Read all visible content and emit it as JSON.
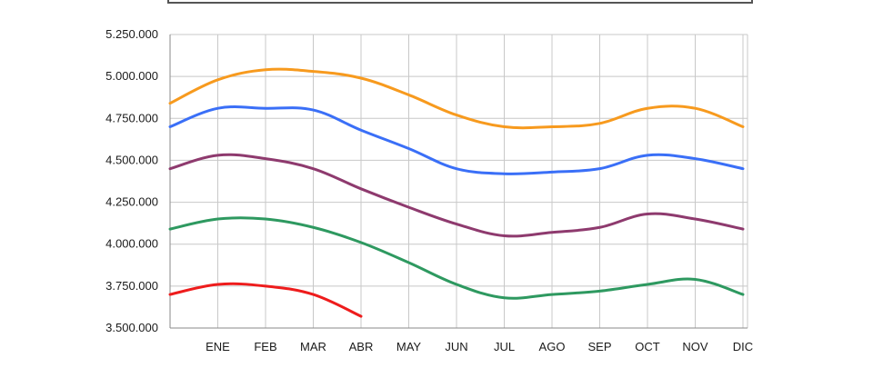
{
  "chart_data": {
    "type": "line",
    "title": "",
    "xlabel": "",
    "ylabel": "",
    "categories": [
      "",
      "ENE",
      "FEB",
      "MAR",
      "ABR",
      "MAY",
      "JUN",
      "JUL",
      "AGO",
      "SEP",
      "OCT",
      "NOV",
      "DIC"
    ],
    "ylim": [
      3500000,
      5250000
    ],
    "yticks": [
      3500000,
      3750000,
      4000000,
      4250000,
      4500000,
      4750000,
      5000000,
      5250000
    ],
    "ytick_labels": [
      "3.500.000",
      "3.750.000",
      "4.000.000",
      "4.250.000",
      "4.500.000",
      "4.750.000",
      "5.000.000",
      "5.250.000"
    ],
    "grid": "on",
    "legend": "none",
    "series": [
      {
        "color": "#f79a1e",
        "values": [
          4840000,
          4980000,
          5040000,
          5030000,
          4990000,
          4890000,
          4770000,
          4700000,
          4700000,
          4720000,
          4810000,
          4810000,
          4700000
        ]
      },
      {
        "color": "#3a6ff7",
        "values": [
          4700000,
          4810000,
          4810000,
          4800000,
          4680000,
          4570000,
          4450000,
          4420000,
          4430000,
          4450000,
          4530000,
          4510000,
          4450000
        ]
      },
      {
        "color": "#8e3a6e",
        "values": [
          4450000,
          4530000,
          4510000,
          4450000,
          4330000,
          4220000,
          4120000,
          4050000,
          4070000,
          4100000,
          4180000,
          4150000,
          4090000
        ]
      },
      {
        "color": "#2e9960",
        "values": [
          4090000,
          4150000,
          4150000,
          4100000,
          4010000,
          3890000,
          3760000,
          3680000,
          3700000,
          3720000,
          3760000,
          3790000,
          3700000
        ]
      },
      {
        "color": "#ee1c1c",
        "values": [
          3700000,
          3760000,
          3750000,
          3700000,
          3570000,
          null,
          null,
          null,
          null,
          null,
          null,
          null,
          null
        ]
      }
    ]
  }
}
